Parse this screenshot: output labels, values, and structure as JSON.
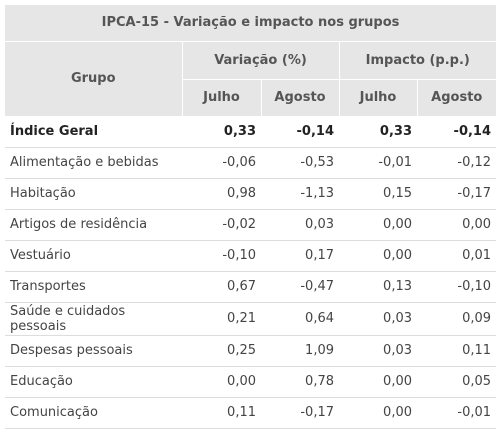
{
  "title": "IPCA-15 - Variação e impacto nos grupos",
  "header": {
    "grupo": "Grupo",
    "variacao": "Variação (%)",
    "impacto": "Impacto (p.p.)",
    "julho": "Julho",
    "agosto": "Agosto"
  },
  "rows": [
    {
      "grupo": "Índice Geral",
      "var_julho": "0,33",
      "var_agosto": "-0,14",
      "imp_julho": "0,33",
      "imp_agosto": "-0,14"
    },
    {
      "grupo": "Alimentação e bebidas",
      "var_julho": "-0,06",
      "var_agosto": "-0,53",
      "imp_julho": "-0,01",
      "imp_agosto": "-0,12"
    },
    {
      "grupo": "Habitação",
      "var_julho": "0,98",
      "var_agosto": "-1,13",
      "imp_julho": "0,15",
      "imp_agosto": "-0,17"
    },
    {
      "grupo": "Artigos de residência",
      "var_julho": "-0,02",
      "var_agosto": "0,03",
      "imp_julho": "0,00",
      "imp_agosto": "0,00"
    },
    {
      "grupo": "Vestuário",
      "var_julho": "-0,10",
      "var_agosto": "0,17",
      "imp_julho": "0,00",
      "imp_agosto": "0,01"
    },
    {
      "grupo": "Transportes",
      "var_julho": "0,67",
      "var_agosto": "-0,47",
      "imp_julho": "0,13",
      "imp_agosto": "-0,10"
    },
    {
      "grupo": "Saúde e cuidados pessoais",
      "var_julho": "0,21",
      "var_agosto": "0,64",
      "imp_julho": "0,03",
      "imp_agosto": "0,09"
    },
    {
      "grupo": "Despesas pessoais",
      "var_julho": "0,25",
      "var_agosto": "1,09",
      "imp_julho": "0,03",
      "imp_agosto": "0,11"
    },
    {
      "grupo": "Educação",
      "var_julho": "0,00",
      "var_agosto": "0,78",
      "imp_julho": "0,00",
      "imp_agosto": "0,05"
    },
    {
      "grupo": "Comunicação",
      "var_julho": "0,11",
      "var_agosto": "-0,17",
      "imp_julho": "0,00",
      "imp_agosto": "-0,01"
    }
  ]
}
